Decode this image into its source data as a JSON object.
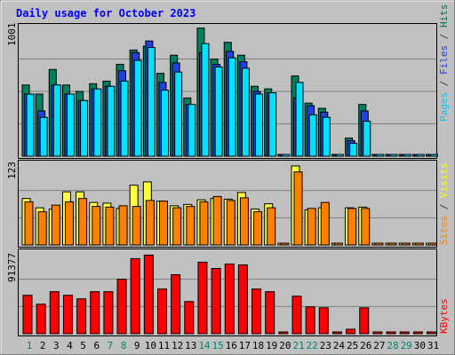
{
  "chart_data": {
    "type": "bar",
    "title": "Daily usage for October 2023",
    "categories": [
      "1",
      "2",
      "3",
      "4",
      "5",
      "6",
      "7",
      "8",
      "9",
      "10",
      "11",
      "12",
      "13",
      "14",
      "15",
      "16",
      "17",
      "18",
      "19",
      "20",
      "21",
      "22",
      "23",
      "24",
      "25",
      "26",
      "27",
      "28",
      "29",
      "30",
      "31"
    ],
    "weekend_days": [
      1,
      7,
      8,
      14,
      15,
      21,
      22,
      28,
      29
    ],
    "panels": [
      {
        "id": "hits-files-pages",
        "ymax": 1001,
        "ymax_label": "1001",
        "right_label": [
          {
            "text": "Pages",
            "color": "#00c8ff"
          },
          {
            "text": " / ",
            "color": "#404040"
          },
          {
            "text": "Files",
            "color": "#2040e0"
          },
          {
            "text": " / ",
            "color": "#404040"
          },
          {
            "text": "Hits",
            "color": "#007050"
          }
        ],
        "series": [
          {
            "name": "Hits",
            "color": "#008060",
            "values": [
              550,
              480,
              670,
              550,
              500,
              560,
              580,
              710,
              820,
              850,
              640,
              780,
              450,
              990,
              750,
              880,
              780,
              540,
              520,
              0,
              620,
              410,
              370,
              0,
              140,
              400,
              0,
              0,
              0,
              0,
              0
            ]
          },
          {
            "name": "Files",
            "color": "#2040e0",
            "values": [
              480,
              350,
              550,
              480,
              430,
              520,
              540,
              660,
              800,
              890,
              570,
              720,
              400,
              800,
              710,
              810,
              730,
              500,
              490,
              0,
              450,
              390,
              340,
              0,
              120,
              350,
              0,
              0,
              0,
              0,
              0
            ]
          },
          {
            "name": "Pages",
            "color": "#00e0ff",
            "values": [
              480,
              300,
              550,
              480,
              430,
              520,
              540,
              580,
              740,
              840,
              510,
              650,
              400,
              870,
              690,
              760,
              680,
              480,
              490,
              0,
              570,
              320,
              300,
              0,
              100,
              270,
              0,
              0,
              0,
              0,
              0
            ]
          }
        ]
      },
      {
        "id": "visits-sites",
        "ymax": 123,
        "ymax_label": "123",
        "right_label": [
          {
            "text": "Sites",
            "color": "#ff8000"
          },
          {
            "text": " / ",
            "color": "#404040"
          },
          {
            "text": "Visits",
            "color": "#ffff00"
          }
        ],
        "series": [
          {
            "name": "Visits",
            "color": "#ffff40",
            "values": [
              70,
              56,
              54,
              80,
              80,
              64,
              63,
              55,
              90,
              95,
              66,
              59,
              61,
              68,
              70,
              69,
              79,
              54,
              62,
              2,
              119,
              53,
              56,
              0,
              56,
              57,
              2,
              0,
              0,
              0,
              0
            ]
          },
          {
            "name": "Sites",
            "color": "#ff8000",
            "values": [
              65,
              50,
              60,
              65,
              70,
              58,
              57,
              59,
              58,
              67,
              66,
              56,
              58,
              65,
              73,
              67,
              71,
              50,
              56,
              2,
              110,
              55,
              64,
              0,
              55,
              55,
              2,
              0,
              0,
              0,
              0
            ]
          }
        ]
      },
      {
        "id": "kbytes",
        "ymax": 91377,
        "ymax_label": "91377",
        "right_label": [
          {
            "text": "KBytes",
            "color": "#ff0000"
          }
        ],
        "series": [
          {
            "name": "KBytes",
            "color": "#ff0000",
            "values": [
              43000,
              33000,
              47000,
              43000,
              39000,
              47000,
              47000,
              61000,
              84000,
              88000,
              50000,
              66000,
              36000,
              80000,
              73000,
              78000,
              77000,
              50000,
              47000,
              0,
              42000,
              30000,
              29000,
              0,
              5000,
              29000,
              0,
              0,
              0,
              0,
              0
            ]
          }
        ]
      }
    ]
  },
  "colors": {
    "background": "#c0c0c0",
    "title": "#0000ff",
    "weekday_label": "#000000",
    "weekend_label": "#00806f",
    "grid": "#808080"
  }
}
